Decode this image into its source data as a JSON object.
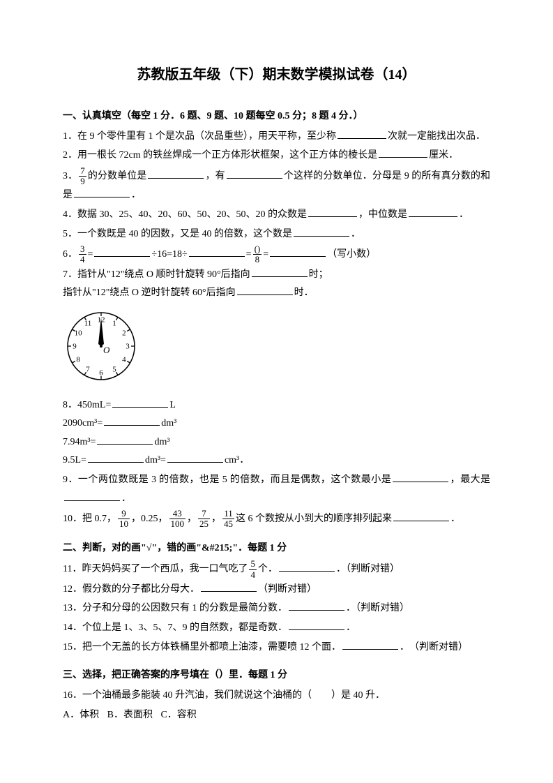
{
  "title": "苏教版五年级（下）期末数学模拟试卷（14）",
  "section1": {
    "header": "一、认真填空（每空 1 分．6 题、9 题、10 题每空 0.5 分；8 题 4 分．）",
    "q1a": "1．在 9 个零件里有 1 个是次品（次品重些），用天平称，至少称",
    "q1b": "次就一定能找出次品．",
    "q2a": "2．用一根长 72cm 的铁丝焊成一个正方体形状框架，这个正方体的棱长是",
    "q2b": "厘米．",
    "q3a": "3．",
    "q3b": "的分数单位是",
    "q3c": "，有",
    "q3d": "个这样的分数单位．分母是 9 的所有真分数的和是",
    "q3e": "．",
    "q4a": "4．数据 30、25、40、20、60、50、20、50、20 的众数是",
    "q4b": "，中位数是",
    "q4c": "．",
    "q5a": "5．一个数既是 40 的因数，又是 40 的倍数，这个数是",
    "q5b": "．",
    "q6a": "6．",
    "q6b": "=",
    "q6c": "÷16=18÷",
    "q6d": "=",
    "q6e": "=",
    "q6f": "（写小数）",
    "q7a": "7．指针从\"12\"绕点 O 顺时针旋转 90°后指向",
    "q7b": "时；",
    "q7c": "指针从\"12\"绕点 O 逆时针旋转 60°后指向",
    "q7d": "时．",
    "q8a": "8．450mL=",
    "q8b": "L",
    "q8c": "2090cm³=",
    "q8d": "dm³",
    "q8e": "7.94m³=",
    "q8f": "dm³",
    "q8g": "9.5L=",
    "q8h": "dm³=",
    "q8i": "cm³．",
    "q9a": "9．一个两位数既是 3 的倍数，也是 5 的倍数，而且是偶数，这个数最小是",
    "q9b": "，最大是",
    "q9c": "．",
    "q10a": "10．把 0.7，",
    "q10b": "，0.25，",
    "q10c": "，",
    "q10d": "，",
    "q10e": "这 6 个数按从小到大的顺序排列起来",
    "q10f": "．",
    "frac7_9_n": "7",
    "frac7_9_d": "9",
    "frac3_4_n": "3",
    "frac3_4_d": "4",
    "frac0_8_n": "()",
    "frac0_8_d": "8",
    "frac9_10_n": "9",
    "frac9_10_d": "10",
    "frac43_100_n": "43",
    "frac43_100_d": "100",
    "frac7_25_n": "7",
    "frac7_25_d": "25",
    "frac11_45_n": "11",
    "frac11_45_d": "45"
  },
  "section2": {
    "header": "二、判断，对的画\"√\"，错的画\"&#215;\"．每题 1 分",
    "q11a": "11．昨天妈妈买了一个西瓜，我一口气吃了",
    "q11b": "个．",
    "q11c": "．（判断对错）",
    "frac5_4_n": "5",
    "frac5_4_d": "4",
    "q12": "12．假分数的分子都比分母大．",
    "q12b": "（判断对错）",
    "q13": "13．分子和分母的公因数只有 1 的分数是最简分数．",
    "q13b": "．（判断对错）",
    "q14": "14．个位上是 1、3、5、7、9 的自然数，都是奇数．",
    "q14b": "．",
    "q15a": "15．把一个无盖的长方体铁桶里外都喷上油漆，需要喷 12 个面．",
    "q15b": "．　（判断对错）"
  },
  "section3": {
    "header": "三、选择，把正确答案的序号填在（）里．每题 1 分",
    "q16": "16．一个油桶最多能装 40 升汽油，我们就说这个油桶的（　　）是 40 升．",
    "q16a": "A．体积",
    "q16b": "B．表面积",
    "q16c": "C．容积"
  },
  "clock": {
    "numbers": [
      "12",
      "1",
      "2",
      "3",
      "4",
      "5",
      "6",
      "7",
      "8",
      "9",
      "10",
      "11"
    ],
    "stroke": "#000000",
    "fill": "#ffffff",
    "center_label": "O"
  }
}
